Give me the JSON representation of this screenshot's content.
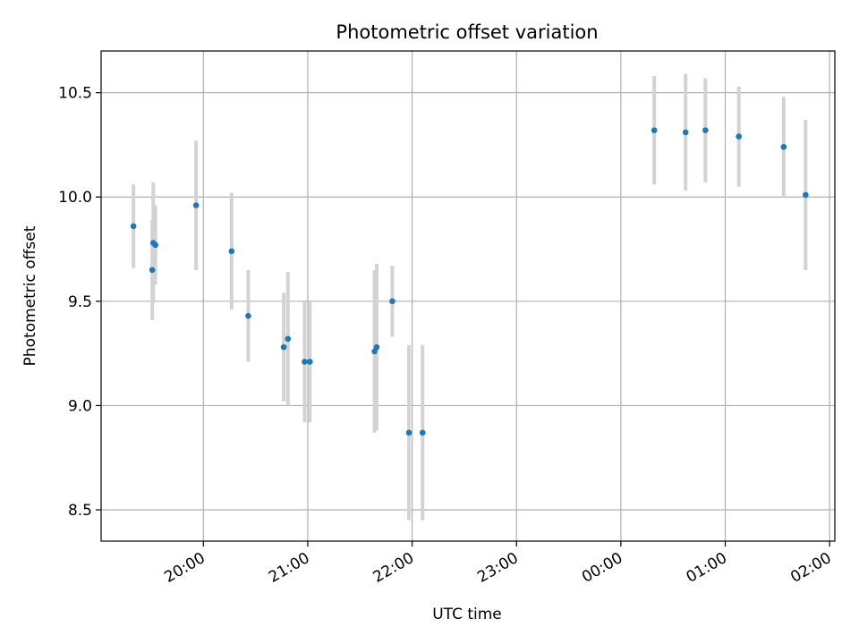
{
  "chart_data": {
    "type": "scatter",
    "title": "Photometric offset variation",
    "xlabel": "UTC time",
    "ylabel": "Photometric offset",
    "x_unit": "UTC hours (values past 24 are times after midnight of the next day)",
    "xlim": [
      19.02,
      26.05
    ],
    "ylim": [
      8.35,
      10.7
    ],
    "xticks": [
      {
        "value": 20,
        "label": "20:00"
      },
      {
        "value": 21,
        "label": "21:00"
      },
      {
        "value": 22,
        "label": "22:00"
      },
      {
        "value": 23,
        "label": "23:00"
      },
      {
        "value": 24,
        "label": "00:00"
      },
      {
        "value": 25,
        "label": "01:00"
      },
      {
        "value": 26,
        "label": "02:00"
      }
    ],
    "yticks": [
      {
        "value": 8.5,
        "label": "8.5"
      },
      {
        "value": 9.0,
        "label": "9.0"
      },
      {
        "value": 9.5,
        "label": "9.5"
      },
      {
        "value": 10.0,
        "label": "10.0"
      },
      {
        "value": 10.5,
        "label": "10.5"
      }
    ],
    "grid": true,
    "colors": {
      "points": "#1f77b4",
      "errorbars": "#d3d3d3",
      "grid": "#b0b0b0"
    },
    "series": [
      {
        "points": [
          {
            "x": 19.33,
            "y": 9.86,
            "err": 0.2
          },
          {
            "x": 19.51,
            "y": 9.65,
            "err": 0.24
          },
          {
            "x": 19.52,
            "y": 9.78,
            "err": 0.29
          },
          {
            "x": 19.54,
            "y": 9.77,
            "err": 0.19
          },
          {
            "x": 19.93,
            "y": 9.96,
            "err": 0.31
          },
          {
            "x": 20.27,
            "y": 9.74,
            "err": 0.28
          },
          {
            "x": 20.43,
            "y": 9.43,
            "err": 0.22
          },
          {
            "x": 20.77,
            "y": 9.28,
            "err": 0.26
          },
          {
            "x": 20.81,
            "y": 9.32,
            "err": 0.32
          },
          {
            "x": 20.97,
            "y": 9.21,
            "err": 0.29
          },
          {
            "x": 21.02,
            "y": 9.21,
            "err": 0.29
          },
          {
            "x": 21.64,
            "y": 9.26,
            "err": 0.39
          },
          {
            "x": 21.66,
            "y": 9.28,
            "err": 0.4
          },
          {
            "x": 21.81,
            "y": 9.5,
            "err": 0.17
          },
          {
            "x": 21.97,
            "y": 8.87,
            "err": 0.42
          },
          {
            "x": 22.1,
            "y": 8.87,
            "err": 0.42
          },
          {
            "x": 24.32,
            "y": 10.32,
            "err": 0.26
          },
          {
            "x": 24.62,
            "y": 10.31,
            "err": 0.28
          },
          {
            "x": 24.81,
            "y": 10.32,
            "err": 0.25
          },
          {
            "x": 25.13,
            "y": 10.29,
            "err": 0.24
          },
          {
            "x": 25.56,
            "y": 10.24,
            "err": 0.24
          },
          {
            "x": 25.77,
            "y": 10.01,
            "err": 0.36
          }
        ]
      }
    ]
  }
}
